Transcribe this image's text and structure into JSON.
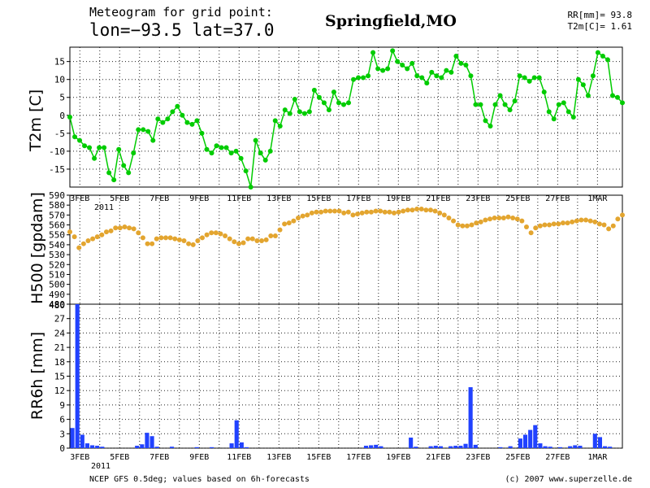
{
  "header": {
    "line1": "Meteogram for grid point:",
    "line2": "lon=−93.5 lat=37.0",
    "city": "Springfield,MO",
    "rr_line": "RR[mm]= 93.8",
    "t2m_line": "T2m[C]= 1.61"
  },
  "footer": {
    "source": "NCEP GFS 0.5deg; values based on 6h-forecasts",
    "copyright": "(c) 2007 www.superzelle.de"
  },
  "axis": {
    "date_labels": [
      "3FEB",
      "5FEB",
      "7FEB",
      "9FEB",
      "11FEB",
      "13FEB",
      "15FEB",
      "17FEB",
      "19FEB",
      "21FEB",
      "23FEB",
      "25FEB",
      "27FEB",
      "1MAR"
    ],
    "year_label": "2011"
  },
  "colors": {
    "t2m": "#00cc00",
    "h500": "#e3a52f",
    "rr6h": "#2142ff"
  },
  "chart_data": [
    {
      "type": "line",
      "ylabel": "T2m [C]",
      "x_unit": "days since 1 FEB 2011 00Z",
      "xlim": [
        1.5,
        29.25
      ],
      "ylim": [
        -20,
        19
      ],
      "yticks": [
        -15,
        -10,
        -5,
        0,
        5,
        10,
        15
      ],
      "series": [
        {
          "values": [
            -0.5,
            -6,
            -7,
            -8.5,
            -9,
            -12,
            -9,
            -9,
            -16,
            -18,
            -9.5,
            -14,
            -16,
            -10.5,
            -4,
            -4,
            -4.5,
            -7,
            -1,
            -2,
            -1,
            1,
            2.5,
            0,
            -2,
            -2.5,
            -1.5,
            -5,
            -9.5,
            -10.5,
            -8.5,
            -9,
            -9,
            -10.5,
            -10,
            -12,
            -15.5,
            -20,
            -7,
            -10.5,
            -12.5,
            -10,
            -1.5,
            -3,
            1.5,
            0.5,
            4.5,
            1,
            0.5,
            1,
            7,
            5,
            3.5,
            1.5,
            6.5,
            3.5,
            3,
            3.5,
            10,
            10.5,
            10.5,
            11,
            17.5,
            13,
            12.5,
            13,
            18,
            15,
            14,
            13,
            14.5,
            11,
            10.5,
            9,
            12,
            11,
            10.5,
            12.5,
            12,
            16.5,
            14.5,
            14,
            11,
            3,
            3,
            -1.5,
            -3,
            3,
            5.5,
            3,
            1.5,
            4,
            11,
            10.5,
            9.5,
            10.5,
            10.5,
            6.5,
            1,
            -1,
            3,
            3.5,
            1,
            -0.5,
            10,
            8.5,
            5.5,
            11,
            17.5,
            16.5,
            15.5,
            5.5,
            5,
            3.5
          ]
        }
      ]
    },
    {
      "type": "line",
      "ylabel": "H500 [gpdam]",
      "x_unit": "days since 1 FEB 2011 00Z",
      "xlim": [
        1.5,
        29.25
      ],
      "ylim": [
        480,
        590
      ],
      "yticks": [
        480,
        490,
        500,
        510,
        520,
        530,
        540,
        550,
        560,
        570,
        580,
        590
      ],
      "series": [
        {
          "values": [
            553,
            548,
            537,
            541,
            544,
            546,
            548,
            550,
            553,
            554,
            557,
            557,
            558,
            557,
            556,
            552,
            547,
            541,
            541,
            546,
            547,
            547,
            547,
            546,
            545,
            544,
            541,
            540,
            544,
            547,
            550,
            552,
            552,
            551,
            549,
            546,
            543,
            541,
            542,
            546,
            546,
            544,
            544,
            545,
            549,
            549,
            555,
            561,
            562,
            564,
            567,
            569,
            570,
            572,
            573,
            573,
            574,
            574,
            574,
            574,
            572,
            573,
            570,
            571,
            572,
            573,
            573,
            574,
            574,
            573,
            573,
            572,
            573,
            574,
            575,
            575,
            576,
            576,
            575,
            575,
            574,
            572,
            570,
            567,
            564,
            560,
            559,
            559,
            560,
            562,
            563,
            565,
            566,
            567,
            567,
            567,
            568,
            567,
            566,
            564,
            558,
            552,
            557,
            559,
            560,
            560,
            561,
            561,
            562,
            562,
            563,
            564,
            565,
            565,
            564,
            563,
            561,
            560,
            556,
            559,
            566,
            570
          ]
        }
      ]
    },
    {
      "type": "bar",
      "ylabel": "RR6h [mm]",
      "x_unit": "days since 1 FEB 2011 00Z",
      "xlim": [
        1.5,
        29.25
      ],
      "ylim": [
        0,
        30
      ],
      "yticks": [
        0,
        3,
        6,
        9,
        12,
        15,
        18,
        21,
        24,
        27
      ],
      "top_tick_label": "480",
      "bars": [
        {
          "x": 1.625,
          "v": 4.2
        },
        {
          "x": 1.875,
          "v": 30
        },
        {
          "x": 2.125,
          "v": 2.8
        },
        {
          "x": 2.375,
          "v": 1.0
        },
        {
          "x": 2.625,
          "v": 0.6
        },
        {
          "x": 2.875,
          "v": 0.5
        },
        {
          "x": 3.125,
          "v": 0.3
        },
        {
          "x": 4.875,
          "v": 0.5
        },
        {
          "x": 5.125,
          "v": 0.8
        },
        {
          "x": 5.375,
          "v": 3.2
        },
        {
          "x": 5.625,
          "v": 2.5
        },
        {
          "x": 5.875,
          "v": 0.3
        },
        {
          "x": 6.625,
          "v": 0.3
        },
        {
          "x": 7.875,
          "v": 0.2
        },
        {
          "x": 8.625,
          "v": 0.2
        },
        {
          "x": 9.625,
          "v": 1.0
        },
        {
          "x": 9.875,
          "v": 5.8
        },
        {
          "x": 10.125,
          "v": 1.2
        },
        {
          "x": 10.375,
          "v": 0.2
        },
        {
          "x": 16.375,
          "v": 0.5
        },
        {
          "x": 16.625,
          "v": 0.6
        },
        {
          "x": 16.875,
          "v": 0.7
        },
        {
          "x": 17.125,
          "v": 0.4
        },
        {
          "x": 18.625,
          "v": 2.2
        },
        {
          "x": 18.875,
          "v": 0.3
        },
        {
          "x": 19.625,
          "v": 0.4
        },
        {
          "x": 19.875,
          "v": 0.5
        },
        {
          "x": 20.125,
          "v": 0.4
        },
        {
          "x": 20.625,
          "v": 0.4
        },
        {
          "x": 20.875,
          "v": 0.5
        },
        {
          "x": 21.125,
          "v": 0.5
        },
        {
          "x": 21.375,
          "v": 0.9
        },
        {
          "x": 21.625,
          "v": 12.7
        },
        {
          "x": 21.875,
          "v": 0.7
        },
        {
          "x": 23.125,
          "v": 0.2
        },
        {
          "x": 23.625,
          "v": 0.4
        },
        {
          "x": 24.125,
          "v": 2.0
        },
        {
          "x": 24.375,
          "v": 2.8
        },
        {
          "x": 24.625,
          "v": 3.8
        },
        {
          "x": 24.875,
          "v": 4.8
        },
        {
          "x": 25.125,
          "v": 1.0
        },
        {
          "x": 25.375,
          "v": 0.4
        },
        {
          "x": 25.625,
          "v": 0.3
        },
        {
          "x": 26.125,
          "v": 0.2
        },
        {
          "x": 26.625,
          "v": 0.4
        },
        {
          "x": 26.875,
          "v": 0.6
        },
        {
          "x": 27.125,
          "v": 0.5
        },
        {
          "x": 27.875,
          "v": 3.0
        },
        {
          "x": 28.125,
          "v": 2.3
        },
        {
          "x": 28.375,
          "v": 0.4
        },
        {
          "x": 28.625,
          "v": 0.3
        }
      ]
    }
  ]
}
